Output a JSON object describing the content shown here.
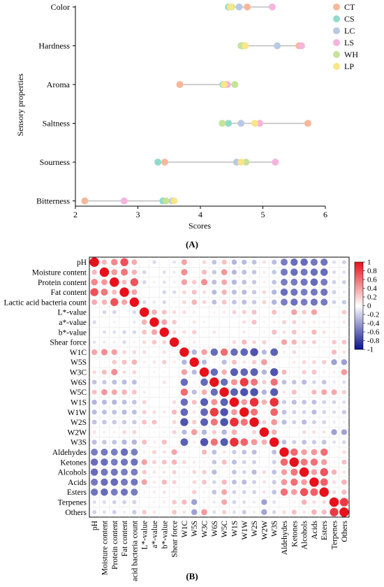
{
  "chart_data": [
    {
      "type": "scatter",
      "title": "",
      "xlabel": "Scores",
      "ylabel": "Sensory properties",
      "xlim": [
        2,
        6
      ],
      "xticks": [
        "2",
        "3",
        "4",
        "5",
        "6"
      ],
      "categories": [
        "Color",
        "Hardness",
        "Aroma",
        "Saltness",
        "Sourness",
        "Bitterness"
      ],
      "legend_position": "top-right",
      "series": [
        {
          "name": "CT",
          "color": "#f9b79a",
          "values": [
            4.75,
            5.58,
            3.67,
            5.72,
            3.43,
            2.15
          ]
        },
        {
          "name": "CS",
          "color": "#8fdccb",
          "values": [
            4.45,
            4.68,
            4.36,
            4.45,
            3.32,
            3.4
          ]
        },
        {
          "name": "LC",
          "color": "#b9c9e4",
          "values": [
            4.62,
            5.23,
            4.4,
            4.65,
            4.58,
            3.55
          ]
        },
        {
          "name": "LS",
          "color": "#f6b4dd",
          "values": [
            5.15,
            5.62,
            4.43,
            4.95,
            5.2,
            2.78
          ]
        },
        {
          "name": "WH",
          "color": "#c6e39a",
          "values": [
            4.5,
            4.65,
            4.55,
            4.35,
            4.73,
            3.45
          ]
        },
        {
          "name": "LP",
          "color": "#fbe58a",
          "values": [
            4.48,
            4.72,
            4.38,
            4.87,
            4.65,
            3.58
          ]
        }
      ],
      "panel_label": "(A)"
    },
    {
      "type": "heatmap",
      "labels": [
        "pH",
        "Moisture content",
        "Protein content",
        "Fat content",
        "Lactic acid bacteria count",
        "L*-value",
        "a*-value",
        "b*-value",
        "Shear force",
        "W1C",
        "W5S",
        "W3C",
        "W6S",
        "W5C",
        "W1S",
        "W1W",
        "W2S",
        "W2W",
        "W3S",
        "Aldehydes",
        "Ketones",
        "Alcohols",
        "Acids",
        "Esters",
        "Terpenes",
        "Others"
      ],
      "colorbar_ticks": [
        "1",
        "0.8",
        "0.6",
        "0.4",
        "0.2",
        "0",
        "-0.2",
        "-0.4",
        "-0.6",
        "-0.8",
        "-1"
      ],
      "clim": [
        -1,
        1
      ],
      "colors": {
        "positive": "#e8101a",
        "neutral": "#ffffff",
        "negative": "#08108e"
      },
      "panel_label": "(B)"
    }
  ]
}
